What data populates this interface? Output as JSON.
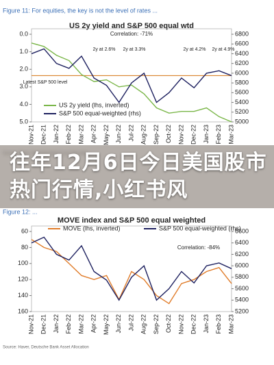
{
  "overlay_title": "往年12月6日今日美国股市热门行情,小红书风",
  "chart_data": [
    {
      "type": "line",
      "caption": "Figure 11: For equities, the key is not the level of rates ...",
      "title": "US 2y yield and S&P 500 equal wtd",
      "subtitle": "Correlation: -71%",
      "source": "Source: Haver, Deutsche Bank Asset Allocation",
      "categories": [
        "Nov-21",
        "Dec-21",
        "Jan-22",
        "Feb-22",
        "Mar-22",
        "Apr-22",
        "May-22",
        "Jun-22",
        "Jul-22",
        "Aug-22",
        "Sep-22",
        "Oct-22",
        "Nov-22",
        "Dec-22",
        "Jan-23",
        "Feb-23",
        "Mar-23"
      ],
      "series": [
        {
          "name": "US 2y yield (lhs, inverted)",
          "color": "#7ab648",
          "values": [
            0.5,
            0.7,
            1.2,
            1.5,
            2.3,
            2.7,
            2.6,
            3.0,
            2.9,
            3.4,
            4.2,
            4.5,
            4.4,
            4.4,
            4.2,
            4.7,
            5.0
          ]
        },
        {
          "name": "S&P 500 equal-weighted (rhs)",
          "color": "#1c1f5e",
          "axis": "y2",
          "values": [
            6400,
            6500,
            6200,
            6100,
            6350,
            5900,
            5750,
            5400,
            5800,
            6000,
            5400,
            5600,
            5900,
            5700,
            6000,
            6050,
            5950
          ]
        }
      ],
      "hlines": [
        {
          "value": 5950,
          "axis": "y2",
          "color": "#d9822b"
        }
      ],
      "annotations": [
        "2y at 2.6%",
        "2y at 3.3%",
        "2y at 4.2%",
        "2y at 4.9%",
        "Latest S&P 500 level"
      ],
      "ylim": [
        0,
        5
      ],
      "y_inverted": true,
      "yticks": [
        {
          "value": 0,
          "label": "0.0"
        },
        {
          "value": 1,
          "label": "1.0"
        },
        {
          "value": 2,
          "label": "2.0"
        },
        {
          "value": 3,
          "label": "3.0"
        },
        {
          "value": 4,
          "label": "4.0"
        },
        {
          "value": 5,
          "label": "5.0"
        }
      ],
      "y2lim": [
        5000,
        6800
      ],
      "y2ticks": [
        5000,
        5200,
        5400,
        5600,
        5800,
        6000,
        6200,
        6400,
        6600,
        6800
      ],
      "legend": "lower left"
    },
    {
      "type": "line",
      "caption": "Figure 12: ...",
      "title": "MOVE index and S&P 500 equal weighted",
      "subtitle": "Correlation: -84%",
      "source": "Source: Haver, Deutsche Bank Asset Allocation",
      "categories": [
        "Nov-21",
        "Dec-21",
        "Jan-22",
        "Feb-22",
        "Mar-22",
        "Apr-22",
        "May-22",
        "Jun-22",
        "Jul-22",
        "Aug-22",
        "Sep-22",
        "Oct-22",
        "Nov-22",
        "Dec-22",
        "Jan-23",
        "Feb-23",
        "Mar-23"
      ],
      "series": [
        {
          "name": "MOVE (lhs, inverted)",
          "color": "#e07b28",
          "values": [
            70,
            80,
            85,
            100,
            115,
            120,
            115,
            145,
            110,
            120,
            140,
            150,
            125,
            120,
            110,
            105,
            125
          ]
        },
        {
          "name": "S&P 500 equal-weighted (rhs)",
          "color": "#1c1f5e",
          "axis": "y2",
          "values": [
            6400,
            6500,
            6200,
            6100,
            6350,
            5900,
            5750,
            5400,
            5800,
            6000,
            5400,
            5600,
            5900,
            5700,
            6000,
            6050,
            5950
          ]
        }
      ],
      "hlines": [],
      "annotations": [],
      "ylim": [
        60,
        160
      ],
      "y_inverted": true,
      "yticks": [
        60,
        80,
        100,
        120,
        140,
        160
      ],
      "y2lim": [
        5200,
        6600
      ],
      "y2ticks": [
        5200,
        5400,
        5600,
        5800,
        6000,
        6200,
        6400,
        6600
      ],
      "legend": "upper center"
    }
  ]
}
